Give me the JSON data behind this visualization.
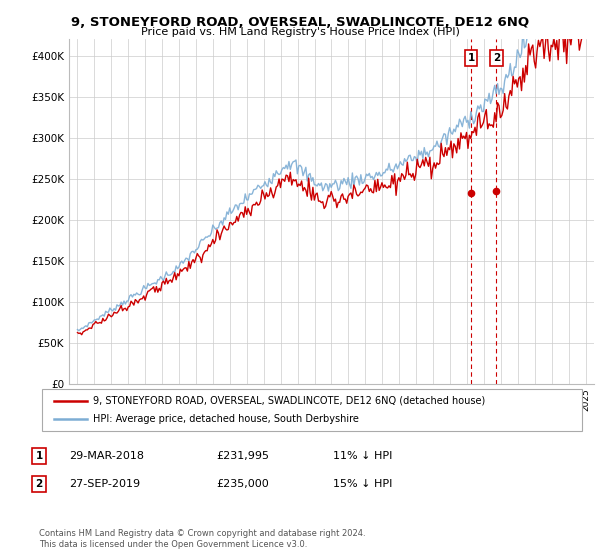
{
  "title": "9, STONEYFORD ROAD, OVERSEAL, SWADLINCOTE, DE12 6NQ",
  "subtitle": "Price paid vs. HM Land Registry's House Price Index (HPI)",
  "legend_line1": "9, STONEYFORD ROAD, OVERSEAL, SWADLINCOTE, DE12 6NQ (detached house)",
  "legend_line2": "HPI: Average price, detached house, South Derbyshire",
  "footer": "Contains HM Land Registry data © Crown copyright and database right 2024.\nThis data is licensed under the Open Government Licence v3.0.",
  "sale1_date": "29-MAR-2018",
  "sale1_price": "£231,995",
  "sale1_hpi": "11% ↓ HPI",
  "sale2_date": "27-SEP-2019",
  "sale2_price": "£235,000",
  "sale2_hpi": "15% ↓ HPI",
  "sale1_x": 2018.24,
  "sale2_x": 2019.74,
  "sale1_y": 231995,
  "sale2_y": 235000,
  "ylim_min": 0,
  "ylim_max": 420000,
  "xlim_min": 1994.5,
  "xlim_max": 2025.5,
  "red_color": "#cc0000",
  "blue_color": "#7dadd4",
  "vline_color": "#cc0000",
  "grid_color": "#cccccc",
  "yticks": [
    0,
    50000,
    100000,
    150000,
    200000,
    250000,
    300000,
    350000,
    400000
  ],
  "ytick_labels": [
    "£0",
    "£50K",
    "£100K",
    "£150K",
    "£200K",
    "£250K",
    "£300K",
    "£350K",
    "£400K"
  ]
}
